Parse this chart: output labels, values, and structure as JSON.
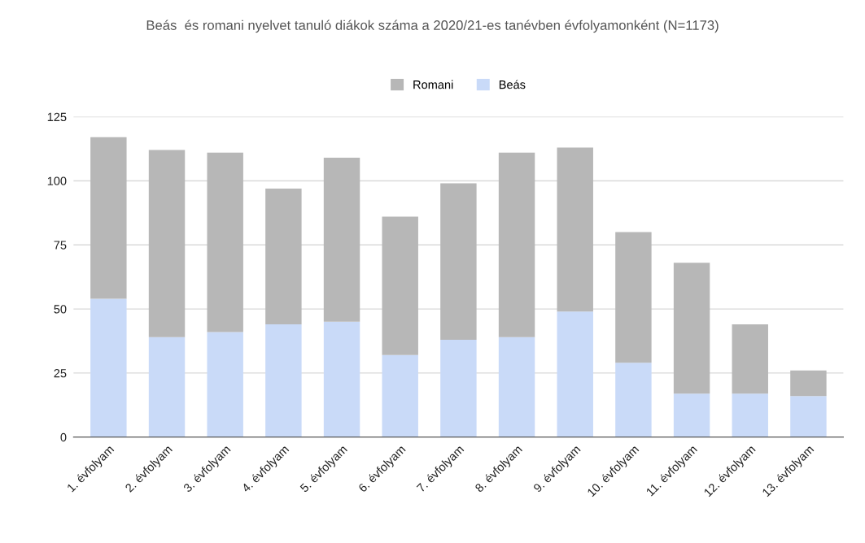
{
  "chart_data": {
    "type": "bar",
    "stacked": true,
    "title": "Beás  és romani nyelvet tanuló diákok száma a 2020/21-es tanévben évfolyamonként (N=1173)",
    "categories": [
      "1. évfolyam",
      "2. évfolyam",
      "3. évfolyam",
      "4. évfolyam",
      "5. évfolyam",
      "6. évfolyam",
      "7. évfolyam",
      "8. évfolyam",
      "9. évfolyam",
      "10. évfolyam",
      "11. évfolyam",
      "12. évfolyam",
      "13. évfolyam"
    ],
    "series": [
      {
        "name": "Beás",
        "color": "#c9daf8",
        "values": [
          54,
          39,
          41,
          44,
          45,
          32,
          38,
          39,
          49,
          29,
          17,
          17,
          16
        ]
      },
      {
        "name": "Romani",
        "color": "#b7b7b7",
        "values": [
          63,
          73,
          70,
          53,
          64,
          54,
          61,
          72,
          64,
          51,
          51,
          27,
          10
        ]
      }
    ],
    "ylim": [
      0,
      125
    ],
    "yticks": [
      0,
      25,
      50,
      75,
      100,
      125
    ],
    "grid": "y",
    "legend": "top"
  }
}
